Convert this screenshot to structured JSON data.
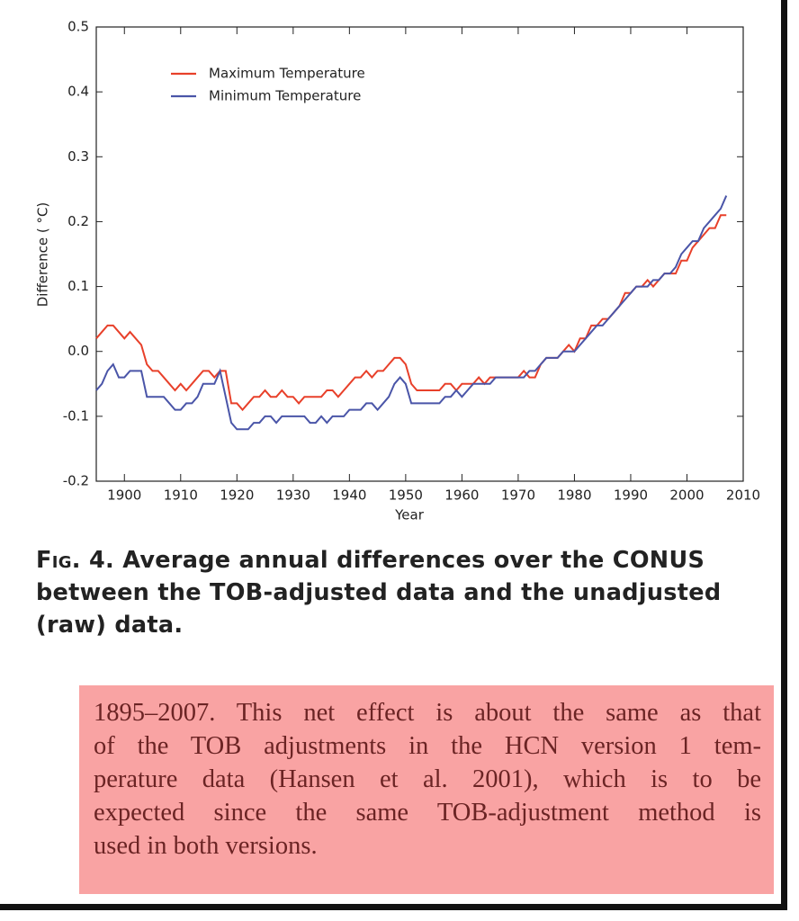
{
  "chart_data": {
    "type": "line",
    "x_label": "Year",
    "y_label": "Difference ( °C)",
    "xlim": [
      1895,
      2010
    ],
    "ylim": [
      -0.2,
      0.5
    ],
    "xticks": [
      1900,
      1910,
      1920,
      1930,
      1940,
      1950,
      1960,
      1970,
      1980,
      1990,
      2000,
      2010
    ],
    "yticks": [
      0.5,
      0.4,
      0.3,
      0.2,
      0.1,
      {
        "value": 0,
        "label": "0.0"
      },
      -0.1,
      -0.2
    ],
    "legend": "upper left",
    "x": [
      1895,
      1896,
      1897,
      1898,
      1899,
      1900,
      1901,
      1902,
      1903,
      1904,
      1905,
      1906,
      1907,
      1908,
      1909,
      1910,
      1911,
      1912,
      1913,
      1914,
      1915,
      1916,
      1917,
      1918,
      1919,
      1920,
      1921,
      1922,
      1923,
      1924,
      1925,
      1926,
      1927,
      1928,
      1929,
      1930,
      1931,
      1932,
      1933,
      1934,
      1935,
      1936,
      1937,
      1938,
      1939,
      1940,
      1941,
      1942,
      1943,
      1944,
      1945,
      1946,
      1947,
      1948,
      1949,
      1950,
      1951,
      1952,
      1953,
      1954,
      1955,
      1956,
      1957,
      1958,
      1959,
      1960,
      1961,
      1962,
      1963,
      1964,
      1965,
      1966,
      1967,
      1968,
      1969,
      1970,
      1971,
      1972,
      1973,
      1974,
      1975,
      1976,
      1977,
      1978,
      1979,
      1980,
      1981,
      1982,
      1983,
      1984,
      1985,
      1986,
      1987,
      1988,
      1989,
      1990,
      1991,
      1992,
      1993,
      1994,
      1995,
      1996,
      1997,
      1998,
      1999,
      2000,
      2001,
      2002,
      2003,
      2004,
      2005,
      2006,
      2007
    ],
    "series": [
      {
        "name": "Maximum Temperature",
        "color": "#e8402a",
        "values": [
          0.02,
          0.03,
          0.04,
          0.04,
          0.03,
          0.02,
          0.03,
          0.02,
          0.01,
          -0.02,
          -0.03,
          -0.03,
          -0.04,
          -0.05,
          -0.06,
          -0.05,
          -0.06,
          -0.05,
          -0.04,
          -0.03,
          -0.03,
          -0.04,
          -0.03,
          -0.03,
          -0.08,
          -0.08,
          -0.09,
          -0.08,
          -0.07,
          -0.07,
          -0.06,
          -0.07,
          -0.07,
          -0.06,
          -0.07,
          -0.07,
          -0.08,
          -0.07,
          -0.07,
          -0.07,
          -0.07,
          -0.06,
          -0.06,
          -0.07,
          -0.06,
          -0.05,
          -0.04,
          -0.04,
          -0.03,
          -0.04,
          -0.03,
          -0.03,
          -0.02,
          -0.01,
          -0.01,
          -0.02,
          -0.05,
          -0.06,
          -0.06,
          -0.06,
          -0.06,
          -0.06,
          -0.05,
          -0.05,
          -0.06,
          -0.05,
          -0.05,
          -0.05,
          -0.04,
          -0.05,
          -0.04,
          -0.04,
          -0.04,
          -0.04,
          -0.04,
          -0.04,
          -0.03,
          -0.04,
          -0.04,
          -0.02,
          -0.01,
          -0.01,
          -0.01,
          0,
          0.01,
          0,
          0.02,
          0.02,
          0.04,
          0.04,
          0.05,
          0.05,
          0.06,
          0.07,
          0.09,
          0.09,
          0.1,
          0.1,
          0.11,
          0.1,
          0.11,
          0.12,
          0.12,
          0.12,
          0.14,
          0.14,
          0.16,
          0.17,
          0.18,
          0.19,
          0.19,
          0.21,
          0.21
        ]
      },
      {
        "name": "Minimum Temperature",
        "color": "#4a55a8",
        "values": [
          -0.06,
          -0.05,
          -0.03,
          -0.02,
          -0.04,
          -0.04,
          -0.03,
          -0.03,
          -0.03,
          -0.07,
          -0.07,
          -0.07,
          -0.07,
          -0.08,
          -0.09,
          -0.09,
          -0.08,
          -0.08,
          -0.07,
          -0.05,
          -0.05,
          -0.05,
          -0.03,
          -0.07,
          -0.11,
          -0.12,
          -0.12,
          -0.12,
          -0.11,
          -0.11,
          -0.1,
          -0.1,
          -0.11,
          -0.1,
          -0.1,
          -0.1,
          -0.1,
          -0.1,
          -0.11,
          -0.11,
          -0.1,
          -0.11,
          -0.1,
          -0.1,
          -0.1,
          -0.09,
          -0.09,
          -0.09,
          -0.08,
          -0.08,
          -0.09,
          -0.08,
          -0.07,
          -0.05,
          -0.04,
          -0.05,
          -0.08,
          -0.08,
          -0.08,
          -0.08,
          -0.08,
          -0.08,
          -0.07,
          -0.07,
          -0.06,
          -0.07,
          -0.06,
          -0.05,
          -0.05,
          -0.05,
          -0.05,
          -0.04,
          -0.04,
          -0.04,
          -0.04,
          -0.04,
          -0.04,
          -0.03,
          -0.03,
          -0.02,
          -0.01,
          -0.01,
          -0.01,
          0,
          0,
          0,
          0.01,
          0.02,
          0.03,
          0.04,
          0.04,
          0.05,
          0.06,
          0.07,
          0.08,
          0.09,
          0.1,
          0.1,
          0.1,
          0.11,
          0.11,
          0.12,
          0.12,
          0.13,
          0.15,
          0.16,
          0.17,
          0.17,
          0.19,
          0.2,
          0.21,
          0.22,
          0.24
        ]
      }
    ]
  },
  "caption": {
    "label": "Fig. 4.",
    "lines": [
      "Average annual differences over the CONUS",
      "between the TOB-adjusted data and the unadjusted",
      "(raw) data."
    ]
  },
  "note": {
    "lines": [
      "1895–2007. This net effect is about the same as that",
      "of the TOB adjustments in the HCN version 1 tem-",
      "perature data (Hansen et al. 2001), which is to be",
      "expected since the same TOB-adjustment method is",
      "used in both versions."
    ]
  }
}
